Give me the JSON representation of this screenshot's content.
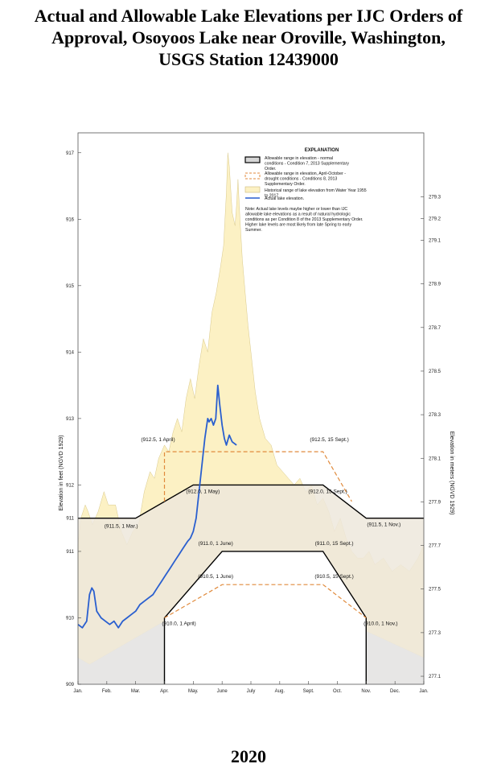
{
  "title_lines": [
    "Actual and Allowable Lake Elevations per IJC Orders of",
    "Approval, Osoyoos Lake near Oroville, Washington,",
    "USGS Station 12439000"
  ],
  "year": "2020",
  "chart_data": {
    "type": "line",
    "x_categories": [
      "Jan.",
      "Feb.",
      "Mar.",
      "Apr.",
      "May.",
      "June",
      "July",
      "Aug.",
      "Sept.",
      "Oct.",
      "Nov.",
      "Dec.",
      "Jan."
    ],
    "ylabel_left": "Elevation in feet (NGVD 1929)",
    "ylabel_right": "Elevation in meters (NGVD 1929)",
    "ylim_feet": [
      909,
      917.3
    ],
    "left_ticks": [
      "909",
      "910",
      "911",
      "911",
      "912",
      "913",
      "914",
      "915",
      "916",
      "917"
    ],
    "right_ticks": [
      "277.1",
      "277.3",
      "277.5",
      "277.7",
      "277.9",
      "278.1",
      "278.3",
      "278.5",
      "278.7",
      "278.9",
      "279.1",
      "279.2",
      "279.3"
    ],
    "historical_range": {
      "name": "Historical range of lake elevation from Water Year 1955 to 2017.",
      "upper": [
        [
          0,
          911.1
        ],
        [
          0.1,
          911.5
        ],
        [
          0.25,
          911.7
        ],
        [
          0.35,
          911.6
        ],
        [
          0.5,
          911.4
        ],
        [
          0.7,
          911.6
        ],
        [
          0.9,
          911.9
        ],
        [
          1.05,
          911.7
        ],
        [
          1.3,
          911.7
        ],
        [
          1.5,
          911.3
        ],
        [
          1.7,
          911.1
        ],
        [
          1.9,
          911.3
        ],
        [
          2.1,
          911.4
        ],
        [
          2.3,
          911.9
        ],
        [
          2.5,
          912.2
        ],
        [
          2.65,
          912.1
        ],
        [
          2.8,
          912.4
        ],
        [
          3.0,
          912.6
        ],
        [
          3.15,
          912.5
        ],
        [
          3.3,
          912.8
        ],
        [
          3.45,
          913.0
        ],
        [
          3.6,
          912.8
        ],
        [
          3.75,
          913.3
        ],
        [
          3.9,
          913.6
        ],
        [
          4.05,
          913.3
        ],
        [
          4.2,
          913.8
        ],
        [
          4.35,
          914.2
        ],
        [
          4.5,
          914.0
        ],
        [
          4.65,
          914.6
        ],
        [
          4.8,
          914.9
        ],
        [
          4.95,
          915.3
        ],
        [
          5.05,
          915.6
        ],
        [
          5.15,
          916.4
        ],
        [
          5.2,
          917.0
        ],
        [
          5.25,
          916.8
        ],
        [
          5.35,
          916.1
        ],
        [
          5.45,
          915.9
        ],
        [
          5.5,
          916.2
        ],
        [
          5.55,
          916.6
        ],
        [
          5.62,
          916.0
        ],
        [
          5.7,
          915.4
        ],
        [
          5.8,
          914.9
        ],
        [
          5.9,
          914.4
        ],
        [
          6.0,
          914.0
        ],
        [
          6.15,
          913.4
        ],
        [
          6.3,
          913.0
        ],
        [
          6.5,
          912.7
        ],
        [
          6.7,
          912.6
        ],
        [
          6.9,
          912.3
        ],
        [
          7.1,
          912.2
        ],
        [
          7.3,
          912.1
        ],
        [
          7.5,
          912.0
        ],
        [
          7.7,
          912.1
        ],
        [
          7.9,
          911.9
        ],
        [
          8.1,
          912.0
        ],
        [
          8.3,
          911.7
        ],
        [
          8.5,
          911.8
        ],
        [
          8.7,
          911.6
        ],
        [
          8.9,
          911.3
        ],
        [
          9.1,
          911.5
        ],
        [
          9.3,
          911.2
        ],
        [
          9.5,
          911.0
        ],
        [
          9.7,
          910.9
        ],
        [
          9.9,
          910.9
        ],
        [
          10.1,
          911.0
        ],
        [
          10.3,
          910.8
        ],
        [
          10.6,
          910.9
        ],
        [
          10.9,
          910.7
        ],
        [
          11.2,
          910.8
        ],
        [
          11.5,
          910.7
        ],
        [
          11.8,
          910.9
        ],
        [
          12.0,
          911.1
        ]
      ],
      "lower": [
        [
          0,
          909.4
        ],
        [
          0.4,
          909.3
        ],
        [
          0.8,
          909.4
        ],
        [
          1.2,
          909.5
        ],
        [
          1.6,
          909.6
        ],
        [
          2.0,
          909.7
        ],
        [
          2.4,
          909.8
        ],
        [
          2.8,
          909.9
        ],
        [
          3.2,
          910.0
        ],
        [
          3.6,
          910.1
        ],
        [
          4.0,
          910.3
        ],
        [
          4.4,
          910.4
        ],
        [
          4.8,
          910.5
        ],
        [
          5.2,
          910.5
        ],
        [
          5.6,
          910.6
        ],
        [
          6.0,
          910.6
        ],
        [
          6.5,
          910.5
        ],
        [
          7.0,
          910.4
        ],
        [
          7.5,
          910.3
        ],
        [
          8.0,
          910.2
        ],
        [
          8.5,
          910.1
        ],
        [
          9.0,
          910.0
        ],
        [
          9.5,
          909.9
        ],
        [
          10.0,
          909.8
        ],
        [
          10.5,
          909.7
        ],
        [
          11.0,
          909.6
        ],
        [
          11.5,
          909.5
        ],
        [
          12.0,
          909.4
        ]
      ]
    },
    "normal_range": {
      "name": "Allowable range in elevation - normal conditions - Condition 7, 2013 Supplementary Order.",
      "upper": [
        [
          0,
          911.5
        ],
        [
          2.0,
          911.5
        ],
        [
          4.0,
          912.0
        ],
        [
          8.5,
          912.0
        ],
        [
          10.0,
          911.5
        ],
        [
          12.0,
          911.5
        ]
      ],
      "lower": [
        [
          3.0,
          909.0
        ],
        [
          3.0,
          910.0
        ],
        [
          5.0,
          911.0
        ],
        [
          8.5,
          911.0
        ],
        [
          10.0,
          910.0
        ],
        [
          10.0,
          909.0
        ]
      ]
    },
    "drought_range": {
      "name": "Allowable range in elevation, April-October - drought conditions - Conditions 8, 2013 Supplementary Order.",
      "upper": [
        [
          3.0,
          911.75
        ],
        [
          3.0,
          912.5
        ],
        [
          8.5,
          912.5
        ],
        [
          9.5,
          911.75
        ]
      ],
      "lower": [
        [
          3.0,
          910.0
        ],
        [
          5.0,
          910.5
        ],
        [
          8.5,
          910.5
        ],
        [
          10.0,
          910.0
        ]
      ]
    },
    "actual": {
      "name": "Actual lake elevation.",
      "points": [
        [
          0,
          909.9
        ],
        [
          0.15,
          909.85
        ],
        [
          0.3,
          909.95
        ],
        [
          0.4,
          910.35
        ],
        [
          0.48,
          910.45
        ],
        [
          0.55,
          910.4
        ],
        [
          0.65,
          910.1
        ],
        [
          0.8,
          910.0
        ],
        [
          0.95,
          909.95
        ],
        [
          1.1,
          909.9
        ],
        [
          1.25,
          909.95
        ],
        [
          1.4,
          909.85
        ],
        [
          1.55,
          909.95
        ],
        [
          1.7,
          910.0
        ],
        [
          1.85,
          910.05
        ],
        [
          2.0,
          910.1
        ],
        [
          2.15,
          910.2
        ],
        [
          2.3,
          910.25
        ],
        [
          2.45,
          910.3
        ],
        [
          2.6,
          910.35
        ],
        [
          2.75,
          910.45
        ],
        [
          2.9,
          910.55
        ],
        [
          3.05,
          910.65
        ],
        [
          3.2,
          910.75
        ],
        [
          3.35,
          910.85
        ],
        [
          3.5,
          910.95
        ],
        [
          3.65,
          911.05
        ],
        [
          3.8,
          911.15
        ],
        [
          3.9,
          911.2
        ],
        [
          4.0,
          911.3
        ],
        [
          4.1,
          911.5
        ],
        [
          4.2,
          911.9
        ],
        [
          4.3,
          912.3
        ],
        [
          4.4,
          912.7
        ],
        [
          4.5,
          913.0
        ],
        [
          4.55,
          912.95
        ],
        [
          4.62,
          913.0
        ],
        [
          4.7,
          912.9
        ],
        [
          4.78,
          913.0
        ],
        [
          4.85,
          913.5
        ],
        [
          4.92,
          913.2
        ],
        [
          5.0,
          912.9
        ],
        [
          5.08,
          912.7
        ],
        [
          5.15,
          912.6
        ],
        [
          5.25,
          912.75
        ],
        [
          5.35,
          912.65
        ],
        [
          5.5,
          912.6
        ]
      ]
    },
    "annotations": [
      {
        "text": "(912.5, 1 April)",
        "x": 3.0,
        "y": 912.5
      },
      {
        "text": "(912.5, 15 Sept.)",
        "x": 8.5,
        "y": 912.5
      },
      {
        "text": "(912.0, 1 May)",
        "x": 4.0,
        "y": 912.0
      },
      {
        "text": "(912.0, 15 Sept.)",
        "x": 8.5,
        "y": 912.0
      },
      {
        "text": "(911.5, 1 Mar.)",
        "x": 2.0,
        "y": 911.5
      },
      {
        "text": "(911.5, 1 Nov.)",
        "x": 10.0,
        "y": 911.5
      },
      {
        "text": "(911.0, 1 June)",
        "x": 5.0,
        "y": 911.0
      },
      {
        "text": "(911.0, 15 Sept.)",
        "x": 8.5,
        "y": 911.0
      },
      {
        "text": "(910.5, 1 June)",
        "x": 5.0,
        "y": 910.5
      },
      {
        "text": "(910.5, 15 Sept.)",
        "x": 8.5,
        "y": 910.5
      },
      {
        "text": "(910.0, 1 April)",
        "x": 3.0,
        "y": 910.0
      },
      {
        "text": "(910.0, 1 Nov.)",
        "x": 10.0,
        "y": 910.0
      }
    ],
    "explanation": {
      "title": "EXPLANATION",
      "items": [
        "Allowable range in elevation - normal conditions - Condition 7, 2013 Supplementary Order.",
        "Allowable range in elevation, April-October - drought conditions - Conditions 8, 2013 Supplementary Order.",
        "Historical range of lake elevation from Water Year 1955 to 2017.",
        "Actual lake elevation."
      ],
      "note": "Note: Actual lake levels maybe higher or lower than IJC allowable lake elevations as a result of natural hydrologic conditions as per Condition 8 of the 2013 Supplementary Order. Higher lake levels are most likely from late Spring to early Summer."
    },
    "colors": {
      "historical": "#fcf1c4",
      "normal": "#ede7dc",
      "gray_bottom": "#e6e6e6",
      "actual": "#2a5fcf",
      "drought": "#e08a3c",
      "normal_line": "#000000"
    }
  }
}
